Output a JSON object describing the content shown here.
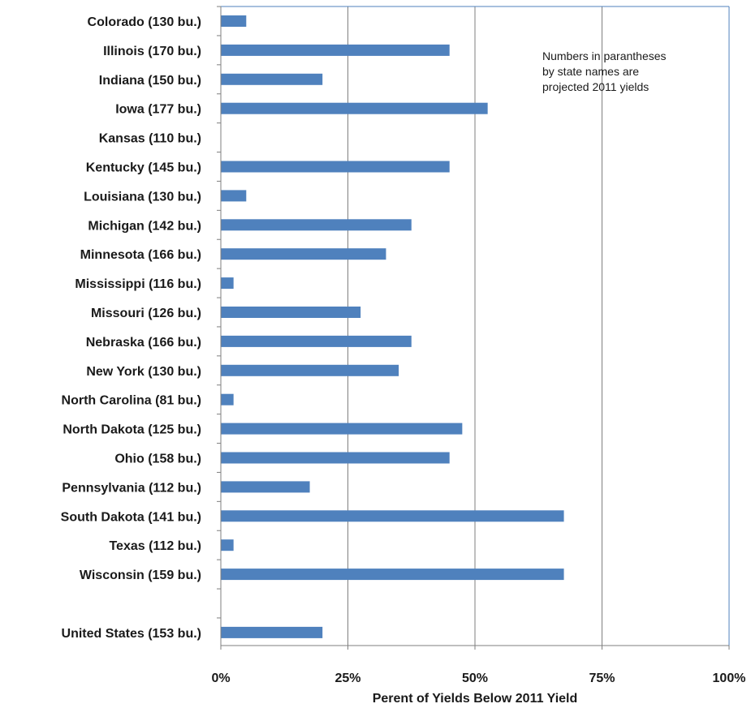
{
  "chart_data": {
    "type": "bar",
    "orientation": "horizontal",
    "categories": [
      "Colorado (130 bu.)",
      "Illinois (170 bu.)",
      "Indiana (150 bu.)",
      "Iowa (177 bu.)",
      "Kansas (110 bu.)",
      "Kentucky (145 bu.)",
      "Louisiana (130 bu.)",
      "Michigan (142 bu.)",
      "Minnesota (166 bu.)",
      "Mississippi (116 bu.)",
      "Missouri (126 bu.)",
      "Nebraska (166 bu.)",
      "New York (130 bu.)",
      "North Carolina (81 bu.)",
      "North Dakota (125 bu.)",
      "Ohio (158 bu.)",
      "Pennsylvania (112 bu.)",
      "South Dakota (141 bu.)",
      "Texas (112 bu.)",
      "Wisconsin (159 bu.)",
      "",
      "United States (153 bu.)"
    ],
    "values": [
      5,
      45,
      20,
      52.5,
      0,
      45,
      5,
      37.5,
      32.5,
      2.5,
      27.5,
      37.5,
      35,
      2.5,
      47.5,
      45,
      17.5,
      67.5,
      2.5,
      67.5,
      null,
      20
    ],
    "xlabel": "Perent of Yields  Below  2011 Yield",
    "xlim": [
      0,
      100
    ],
    "xticks": [
      "0%",
      "25%",
      "50%",
      "75%",
      "100%"
    ],
    "annotation": [
      "Numbers in parantheses",
      "by state names are",
      "projected 2011 yields"
    ],
    "bar_color": "#4f81bd",
    "gridline_color": "#7f7f7f",
    "border_color": "#4f81bd",
    "grid": true
  }
}
